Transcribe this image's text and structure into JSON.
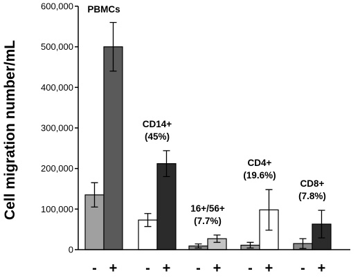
{
  "chart_data": {
    "type": "bar",
    "title": "",
    "xlabel": "",
    "ylabel": "Cell migration number/mL",
    "ylim": [
      0,
      600000
    ],
    "yticks": [
      0,
      100000,
      200000,
      300000,
      400000,
      500000,
      600000
    ],
    "ytick_labels": [
      "0",
      "100,000",
      "200,000",
      "300,000",
      "400,000",
      "500,000",
      "600,000"
    ],
    "grid": false,
    "legend": "none",
    "condition_labels": [
      "-",
      "+"
    ],
    "groups": [
      {
        "label_lines": [
          "PBMCs"
        ],
        "values": [
          135000,
          500000
        ],
        "errors": [
          30000,
          60000
        ],
        "colors": [
          "#a0a0a0",
          "#5a5a5a"
        ]
      },
      {
        "label_lines": [
          "CD14+",
          "(45%)"
        ],
        "values": [
          73000,
          212000
        ],
        "errors": [
          16000,
          32000
        ],
        "colors": [
          "#ffffff",
          "#2b2b2b"
        ]
      },
      {
        "label_lines": [
          "16+/56+",
          "(7.7%)"
        ],
        "values": [
          9000,
          27000
        ],
        "errors": [
          5000,
          9000
        ],
        "colors": [
          "#8a8a8a",
          "#c4c4c4"
        ]
      },
      {
        "label_lines": [
          "CD4+",
          "(19.6%)"
        ],
        "values": [
          11000,
          98000
        ],
        "errors": [
          7000,
          50000
        ],
        "colors": [
          "#9a9a9a",
          "#ffffff"
        ]
      },
      {
        "label_lines": [
          "CD8+",
          "(7.8%)"
        ],
        "values": [
          15000,
          63000
        ],
        "errors": [
          12000,
          34000
        ],
        "colors": [
          "#8a8a8a",
          "#2b2b2b"
        ]
      }
    ]
  }
}
